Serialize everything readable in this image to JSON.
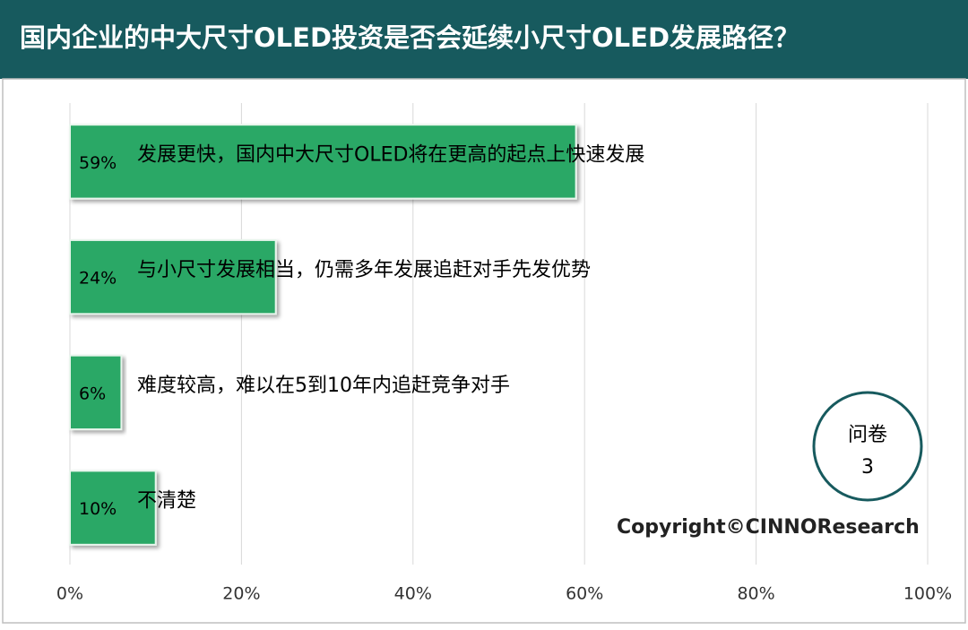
{
  "chart_data": {
    "type": "hbar",
    "title": "国内企业的中大尺寸OLED投资是否会延续小尺寸OLED发展路径？",
    "categories": [
      "发展更快，国内中大尺寸OLED将在更高的起点上快速发展",
      "与小尺寸发展相当，仍需多年发展追赶对手先发优势",
      "难度较高，难以在5到10年内追赶竞争对手",
      "不清楚"
    ],
    "values": [
      59,
      24,
      6,
      10
    ],
    "value_labels": [
      "59%",
      "24%",
      "6%",
      "10%"
    ],
    "color": "#2ba866",
    "xlim": [
      0,
      100
    ],
    "xticks": [
      {
        "value": 0,
        "label": "0%"
      },
      {
        "value": 20,
        "label": "20%"
      },
      {
        "value": 40,
        "label": "40%"
      },
      {
        "value": 60,
        "label": "60%"
      },
      {
        "value": 80,
        "label": "80%"
      },
      {
        "value": 100,
        "label": "100%"
      }
    ],
    "grid": true,
    "annotations": {
      "badge_title": "问卷",
      "badge_number": "3",
      "copyright": "Copyright©CINNOResearch"
    }
  }
}
